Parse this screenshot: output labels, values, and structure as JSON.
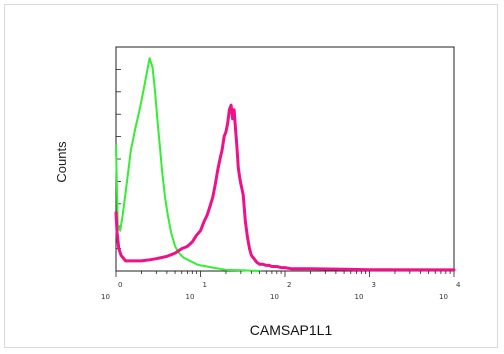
{
  "chart_data": {
    "type": "line",
    "title": "",
    "xlabel": "CAMSAP1L1",
    "ylabel": "Counts",
    "x_scale": "log",
    "xlim": [
      1,
      10000
    ],
    "ylim": [
      0,
      100
    ],
    "grid": false,
    "x_tick_labels": [
      {
        "base": "10",
        "exp": "0"
      },
      {
        "base": "10",
        "exp": "1"
      },
      {
        "base": "10",
        "exp": "2"
      },
      {
        "base": "10",
        "exp": "3"
      },
      {
        "base": "10",
        "exp": "4"
      }
    ],
    "series": [
      {
        "color": "#33ee33",
        "x": [
          1.0,
          1.05,
          1.12,
          1.2,
          1.35,
          1.5,
          1.7,
          1.9,
          2.1,
          2.3,
          2.5,
          2.7,
          2.9,
          3.1,
          3.3,
          3.5,
          3.8,
          4.1,
          4.5,
          5.0,
          5.6,
          6.3,
          7.1,
          8.0,
          9.0,
          10.0,
          12.0,
          14.0,
          17.0,
          20.0,
          30.0,
          50.0
        ],
        "y": [
          56,
          20,
          18,
          25,
          40,
          54,
          64,
          72,
          80,
          88,
          95,
          91,
          80,
          67,
          56,
          45,
          33,
          25,
          17,
          11,
          8,
          6,
          5,
          4,
          3,
          2.5,
          2,
          1.5,
          1,
          0.5,
          0.3,
          0
        ]
      },
      {
        "color": "#ee1188",
        "x": [
          1.0,
          1.03,
          1.08,
          1.15,
          1.3,
          1.5,
          2.0,
          2.5,
          3.0,
          4.0,
          5.0,
          6.0,
          7.0,
          8.0,
          9.0,
          10.0,
          11.0,
          12.0,
          13.0,
          14.0,
          15.0,
          16.0,
          17.0,
          18.0,
          19.0,
          20.0,
          21.0,
          22.0,
          23.0,
          24.0,
          25.0,
          26.0,
          27.0,
          28.0,
          29.0,
          30.0,
          32.0,
          34.0,
          36.0,
          38.0,
          40.0,
          42.0,
          44.0,
          46.0,
          50.0,
          55.0,
          60.0,
          65.0,
          70.0,
          80.0,
          90.0,
          100.0,
          120.0,
          150.0,
          200.0,
          500.0,
          1000.0,
          10000.0
        ],
        "y": [
          26,
          17,
          10,
          7,
          4.5,
          4.5,
          4.5,
          5,
          5.5,
          6.5,
          8,
          10,
          11,
          13,
          16,
          18,
          22,
          25,
          29,
          33,
          39,
          45,
          50,
          54,
          60,
          62,
          66,
          72,
          74,
          68,
          72,
          63,
          55,
          46,
          42,
          39,
          34,
          22,
          15,
          10,
          7,
          6,
          5,
          4,
          3,
          3,
          2.5,
          2.5,
          2,
          2,
          1.5,
          1.5,
          1,
          1,
          1,
          0.8,
          0.6,
          0.5
        ]
      }
    ]
  }
}
